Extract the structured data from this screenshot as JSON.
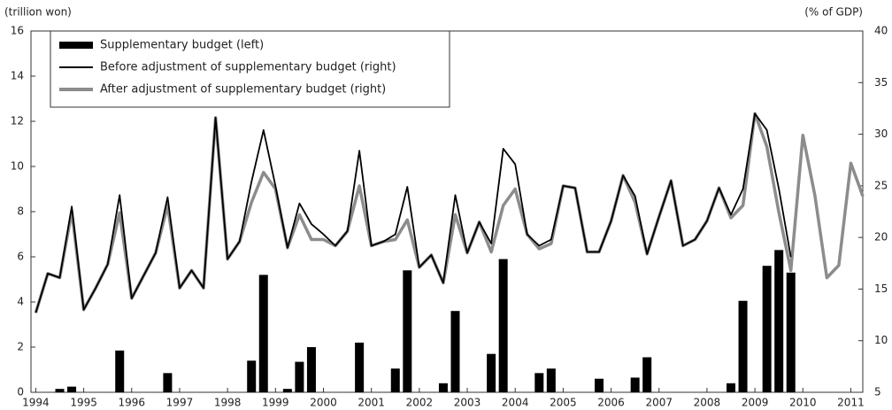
{
  "chart_data": {
    "type": "combo",
    "y_label": "(trillion won)",
    "y2_label": "(% of GDP)",
    "x": [
      1994,
      1994.25,
      1994.5,
      1994.75,
      1995,
      1995.25,
      1995.5,
      1995.75,
      1996,
      1996.25,
      1996.5,
      1996.75,
      1997,
      1997.25,
      1997.5,
      1997.75,
      1998,
      1998.25,
      1998.5,
      1998.75,
      1999,
      1999.25,
      1999.5,
      1999.75,
      2000,
      2000.25,
      2000.5,
      2000.75,
      2001,
      2001.25,
      2001.5,
      2001.75,
      2002,
      2002.25,
      2002.5,
      2002.75,
      2003,
      2003.25,
      2003.5,
      2003.75,
      2004,
      2004.25,
      2004.5,
      2004.75,
      2005,
      2005.25,
      2005.5,
      2005.75,
      2006,
      2006.25,
      2006.5,
      2006.75,
      2007,
      2007.25,
      2007.5,
      2007.75,
      2008,
      2008.25,
      2008.5,
      2008.75,
      2009,
      2009.25,
      2009.5,
      2009.75,
      2010,
      2010.25,
      2010.5,
      2010.75,
      2011,
      2011.25
    ],
    "series": [
      {
        "name": "Supplementary budget (left)",
        "type": "bar",
        "color": "#000000",
        "values": [
          0,
          0,
          0.15,
          0.25,
          0,
          0,
          0,
          1.85,
          0,
          0,
          0,
          0.85,
          0,
          0,
          0,
          0,
          0,
          0,
          1.4,
          5.2,
          0,
          0.15,
          1.35,
          2.0,
          0,
          0,
          0,
          2.2,
          0,
          0,
          1.05,
          5.4,
          0,
          0,
          0.4,
          3.6,
          0,
          0,
          1.7,
          5.9,
          0,
          0,
          0.85,
          1.05,
          0,
          0,
          0,
          0.6,
          0,
          0,
          0.65,
          1.55,
          0,
          0,
          0,
          0,
          0,
          0,
          0.4,
          4.05,
          0,
          5.6,
          6.3,
          5.3,
          0,
          0,
          0,
          0,
          0,
          0
        ]
      },
      {
        "name": "Before adjustment of supplementary budget (right)",
        "type": "line",
        "axis": "y2",
        "color": "#000000",
        "values": [
          12.7,
          16.5,
          16.1,
          23.0,
          13.0,
          15.1,
          17.4,
          24.1,
          14.1,
          16.3,
          18.5,
          23.9,
          15.1,
          16.8,
          15.1,
          31.6,
          17.9,
          19.6,
          25.4,
          30.4,
          25.0,
          19.0,
          23.3,
          21.3,
          20.3,
          19.2,
          20.6,
          28.4,
          19.2,
          19.6,
          20.3,
          24.9,
          17.1,
          18.3,
          15.6,
          24.1,
          18.5,
          21.5,
          19.4,
          28.6,
          27.1,
          20.3,
          19.2,
          19.8,
          25.0,
          24.8,
          18.6,
          18.6,
          21.6,
          26.0,
          24.0,
          18.4,
          22.0,
          25.5,
          19.2,
          19.8,
          21.6,
          24.8,
          22.2,
          24.7,
          32.0,
          30.4,
          24.7,
          18.1,
          null,
          null,
          null,
          null,
          null,
          null
        ]
      },
      {
        "name": "After adjustment of supplementary budget (right)",
        "type": "line",
        "axis": "y2",
        "color": "#8c8c8c",
        "values": [
          12.7,
          16.5,
          16.1,
          22.5,
          13.0,
          15.1,
          17.4,
          22.4,
          14.1,
          16.3,
          18.5,
          23.1,
          15.1,
          16.8,
          15.1,
          31.6,
          17.9,
          19.6,
          23.4,
          26.3,
          24.7,
          19.0,
          22.2,
          19.8,
          19.8,
          19.2,
          20.6,
          25.0,
          19.2,
          19.6,
          19.8,
          21.7,
          17.1,
          18.3,
          15.6,
          22.2,
          18.5,
          21.5,
          18.6,
          23.1,
          24.7,
          20.3,
          18.9,
          19.4,
          25.0,
          24.8,
          18.6,
          18.6,
          21.6,
          26.0,
          23.4,
          18.4,
          22.0,
          25.5,
          19.2,
          19.8,
          21.6,
          24.8,
          21.9,
          23.1,
          32.0,
          28.8,
          22.4,
          16.8,
          29.9,
          24.1,
          16.1,
          17.3,
          27.2,
          24.0
        ]
      }
    ],
    "xlim": [
      1993.9,
      2011.25
    ],
    "xticks": [
      1994,
      1995,
      1996,
      1997,
      1998,
      1999,
      2000,
      2001,
      2002,
      2003,
      2004,
      2005,
      2006,
      2007,
      2008,
      2009,
      2010,
      2011
    ],
    "ylim": [
      0,
      16
    ],
    "yticks": [
      0,
      2,
      4,
      6,
      8,
      10,
      12,
      14,
      16
    ],
    "y2lim": [
      5,
      40
    ],
    "y2ticks": [
      5,
      10,
      15,
      20,
      25,
      30,
      35,
      40
    ],
    "legend": "upper left",
    "grid": false
  }
}
